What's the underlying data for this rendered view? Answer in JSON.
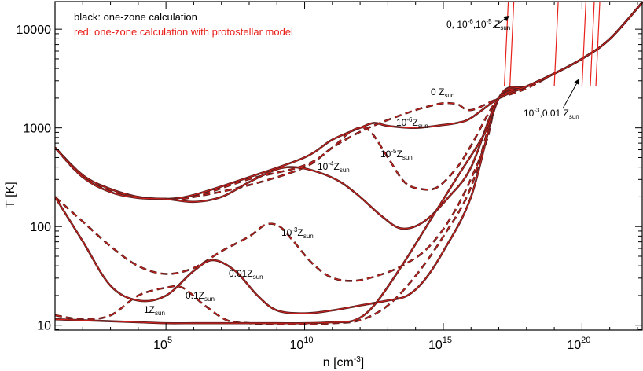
{
  "chart_data": {
    "type": "line",
    "title": "",
    "xlabel": "n [cm-3]",
    "ylabel": "T [K]",
    "xscale": "log",
    "yscale": "log",
    "xlim_log10": [
      1,
      22.2
    ],
    "ylim_log10": [
      0.95,
      4.28
    ],
    "x_ticks": [
      {
        "log10": 5,
        "base": "10",
        "exp": "5"
      },
      {
        "log10": 10,
        "base": "10",
        "exp": "10"
      },
      {
        "log10": 15,
        "base": "10",
        "exp": "15"
      },
      {
        "log10": 20,
        "base": "10",
        "exp": "20"
      }
    ],
    "y_ticks": [
      {
        "log10": 1,
        "label": "10"
      },
      {
        "log10": 2,
        "label": "100"
      },
      {
        "log10": 3,
        "label": "1000"
      },
      {
        "log10": 4,
        "label": "10000"
      }
    ],
    "legend": {
      "black_label": "black: one-zone calculation",
      "red_label": "red: one-zone calculation with protostellar model",
      "black_color": "#000000",
      "red_color": "#e8201a"
    },
    "annotations": [
      {
        "id": "z0",
        "main": "0 Z",
        "sub": "sun"
      },
      {
        "id": "z1e6",
        "main": "10",
        "sup": "-6",
        "main2": "Z",
        "sub": "sun"
      },
      {
        "id": "z1e5",
        "main": "10",
        "sup": "-5",
        "main2": "Z",
        "sub": "sun"
      },
      {
        "id": "z1e4",
        "main": "10",
        "sup": "-4",
        "main2": "Z",
        "sub": "sun"
      },
      {
        "id": "z1e3",
        "main": "10",
        "sup": "-3",
        "main2": "Z",
        "sub": "sun"
      },
      {
        "id": "z001",
        "main": "0.01Z",
        "sub": "sun"
      },
      {
        "id": "z01",
        "main": "0.1Z",
        "sub": "sun"
      },
      {
        "id": "z1",
        "main": "1Z",
        "sub": "sun"
      },
      {
        "id": "ztop",
        "main": "0, 10",
        "sup": "-6",
        "main2": ",10",
        "sup2": "-5",
        "main3": " Z",
        "sub": "sun"
      },
      {
        "id": "zright",
        "main": "10",
        "sup": "-3",
        "main2": ",0.01 Z",
        "sub": "sun"
      }
    ],
    "series": [
      {
        "name": "0 Zsun",
        "style": "dashed",
        "points": [
          [
            1,
            2.8
          ],
          [
            2,
            2.5
          ],
          [
            3,
            2.38
          ],
          [
            4,
            2.3
          ],
          [
            5,
            2.28
          ],
          [
            6,
            2.3
          ],
          [
            8,
            2.42
          ],
          [
            10,
            2.6
          ],
          [
            11,
            2.8
          ],
          [
            12,
            2.96
          ],
          [
            13,
            3.08
          ],
          [
            14,
            3.18
          ],
          [
            14.5,
            3.22
          ],
          [
            15,
            3.25
          ],
          [
            15.5,
            3.24
          ],
          [
            16,
            3.18
          ],
          [
            17,
            3.3
          ],
          [
            18,
            3.4
          ],
          [
            19,
            3.55
          ],
          [
            20,
            3.7
          ],
          [
            21,
            3.9
          ],
          [
            22.2,
            4.28
          ]
        ]
      },
      {
        "name": "1e-6 Zsun",
        "style": "solid",
        "points": [
          [
            1,
            2.8
          ],
          [
            2,
            2.52
          ],
          [
            3,
            2.38
          ],
          [
            4,
            2.3
          ],
          [
            5,
            2.28
          ],
          [
            6,
            2.32
          ],
          [
            8,
            2.5
          ],
          [
            10,
            2.7
          ],
          [
            11,
            2.88
          ],
          [
            12,
            3.0
          ],
          [
            12.5,
            3.05
          ],
          [
            13,
            3.02
          ],
          [
            14,
            3.0
          ],
          [
            15,
            3.03
          ],
          [
            15.5,
            3.05
          ],
          [
            16,
            3.1
          ],
          [
            17,
            3.3
          ],
          [
            18,
            3.42
          ],
          [
            19,
            3.55
          ],
          [
            20,
            3.7
          ],
          [
            21,
            3.9
          ],
          [
            22.2,
            4.28
          ]
        ]
      },
      {
        "name": "1e-5 Zsun",
        "style": "dashed",
        "points": [
          [
            1,
            2.8
          ],
          [
            2,
            2.52
          ],
          [
            3,
            2.37
          ],
          [
            4,
            2.3
          ],
          [
            5,
            2.28
          ],
          [
            6,
            2.3
          ],
          [
            8,
            2.48
          ],
          [
            10,
            2.62
          ],
          [
            11,
            2.8
          ],
          [
            11.7,
            2.97
          ],
          [
            12.3,
            2.98
          ],
          [
            13,
            2.7
          ],
          [
            13.6,
            2.45
          ],
          [
            14.2,
            2.38
          ],
          [
            14.8,
            2.4
          ],
          [
            15.5,
            2.6
          ],
          [
            16,
            2.82
          ],
          [
            17,
            3.3
          ],
          [
            18,
            3.42
          ],
          [
            19,
            3.55
          ],
          [
            20,
            3.7
          ],
          [
            21,
            3.9
          ],
          [
            22.2,
            4.28
          ]
        ]
      },
      {
        "name": "1e-4 Zsun",
        "style": "solid",
        "points": [
          [
            1,
            2.8
          ],
          [
            2,
            2.5
          ],
          [
            3,
            2.35
          ],
          [
            4,
            2.29
          ],
          [
            5,
            2.28
          ],
          [
            6,
            2.25
          ],
          [
            7,
            2.3
          ],
          [
            8,
            2.45
          ],
          [
            9,
            2.58
          ],
          [
            9.7,
            2.6
          ],
          [
            10.5,
            2.55
          ],
          [
            11.3,
            2.45
          ],
          [
            12,
            2.3
          ],
          [
            12.8,
            2.1
          ],
          [
            13.5,
            1.98
          ],
          [
            14.3,
            2.05
          ],
          [
            15.2,
            2.3
          ],
          [
            16,
            2.6
          ],
          [
            17,
            3.3
          ],
          [
            18,
            3.42
          ],
          [
            19,
            3.55
          ],
          [
            20,
            3.7
          ],
          [
            21,
            3.9
          ],
          [
            22.2,
            4.28
          ]
        ]
      },
      {
        "name": "1e-3 Zsun",
        "style": "dashed",
        "points": [
          [
            1,
            2.3
          ],
          [
            2,
            2.05
          ],
          [
            3,
            1.8
          ],
          [
            4,
            1.6
          ],
          [
            5,
            1.52
          ],
          [
            6,
            1.58
          ],
          [
            7,
            1.75
          ],
          [
            8,
            1.9
          ],
          [
            8.6,
            2.02
          ],
          [
            9.1,
            2.0
          ],
          [
            9.6,
            1.85
          ],
          [
            10.3,
            1.62
          ],
          [
            11,
            1.48
          ],
          [
            11.8,
            1.45
          ],
          [
            12.6,
            1.5
          ],
          [
            13.5,
            1.6
          ],
          [
            14.5,
            1.8
          ],
          [
            15.5,
            2.2
          ],
          [
            16.5,
            2.82
          ],
          [
            17,
            3.3
          ],
          [
            18,
            3.42
          ],
          [
            19,
            3.55
          ],
          [
            20,
            3.7
          ],
          [
            21,
            3.9
          ],
          [
            22.2,
            4.28
          ]
        ]
      },
      {
        "name": "0.01 Zsun",
        "style": "solid",
        "points": [
          [
            1,
            2.3
          ],
          [
            2,
            1.85
          ],
          [
            3,
            1.4
          ],
          [
            4,
            1.25
          ],
          [
            5,
            1.3
          ],
          [
            6,
            1.55
          ],
          [
            6.7,
            1.66
          ],
          [
            7.5,
            1.55
          ],
          [
            8.3,
            1.3
          ],
          [
            9,
            1.15
          ],
          [
            10,
            1.12
          ],
          [
            11,
            1.15
          ],
          [
            12,
            1.2
          ],
          [
            13,
            1.25
          ],
          [
            13.7,
            1.3
          ],
          [
            14.3,
            1.45
          ],
          [
            15,
            1.75
          ],
          [
            16,
            2.3
          ],
          [
            17,
            3.3
          ],
          [
            18,
            3.42
          ],
          [
            19,
            3.55
          ],
          [
            20,
            3.7
          ],
          [
            21,
            3.9
          ],
          [
            22.2,
            4.28
          ]
        ]
      },
      {
        "name": "0.1 Zsun",
        "style": "dashed",
        "points": [
          [
            1,
            1.1
          ],
          [
            2,
            1.06
          ],
          [
            3,
            1.1
          ],
          [
            4,
            1.3
          ],
          [
            5,
            1.38
          ],
          [
            5.6,
            1.38
          ],
          [
            6.4,
            1.2
          ],
          [
            7.2,
            1.05
          ],
          [
            8,
            1.02
          ],
          [
            9,
            1.01
          ],
          [
            10,
            1.01
          ],
          [
            11,
            1.02
          ],
          [
            12,
            1.05
          ],
          [
            13,
            1.2
          ],
          [
            14,
            1.5
          ],
          [
            15,
            1.9
          ],
          [
            16,
            2.4
          ],
          [
            17,
            3.3
          ],
          [
            18,
            3.42
          ],
          [
            19,
            3.55
          ],
          [
            20,
            3.7
          ],
          [
            21,
            3.9
          ],
          [
            22.2,
            4.28
          ]
        ]
      },
      {
        "name": "1 Zsun",
        "style": "solid",
        "points": [
          [
            1,
            1.06
          ],
          [
            2,
            1.05
          ],
          [
            3,
            1.04
          ],
          [
            4,
            1.03
          ],
          [
            5,
            1.02
          ],
          [
            6,
            1.02
          ],
          [
            7,
            1.02
          ],
          [
            8,
            1.02
          ],
          [
            9,
            1.02
          ],
          [
            10,
            1.02
          ],
          [
            11,
            1.03
          ],
          [
            11.8,
            1.05
          ],
          [
            12.5,
            1.2
          ],
          [
            13.5,
            1.6
          ],
          [
            14.5,
            2.05
          ],
          [
            15.5,
            2.5
          ],
          [
            16.5,
            2.95
          ],
          [
            17,
            3.3
          ],
          [
            18,
            3.42
          ],
          [
            19,
            3.55
          ],
          [
            20,
            3.7
          ],
          [
            21,
            3.9
          ],
          [
            22.2,
            4.28
          ]
        ]
      }
    ],
    "vertical_red_lines_log10": [
      17.2,
      17.4,
      19.0,
      20.0,
      20.3,
      20.5
    ]
  }
}
